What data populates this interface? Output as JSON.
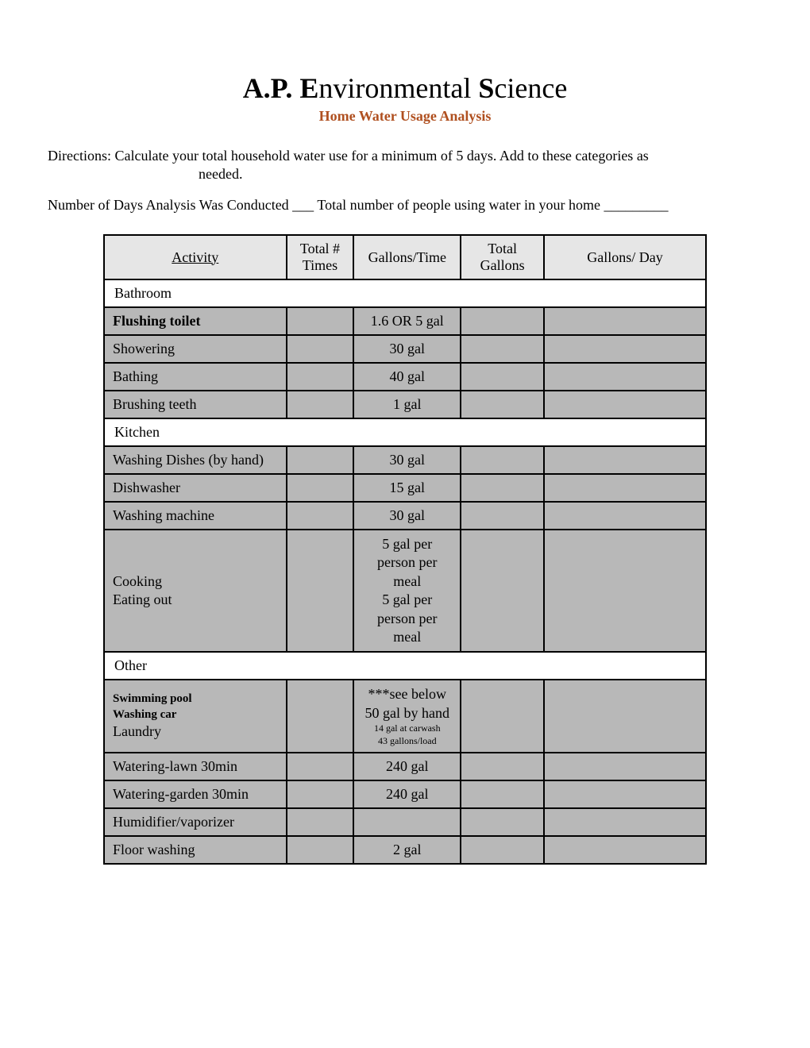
{
  "header": {
    "title_prefix_bold": "A.P. E",
    "title_mid": "nvironmental ",
    "title_s_bold": "S",
    "title_rest": "cience",
    "subtitle": "Home Water Usage Analysis"
  },
  "directions": {
    "line1": "Directions: Calculate your total household water use for a minimum of 5 days. Add to these categories as",
    "line2": "needed."
  },
  "analysis_line": "Number of Days Analysis Was Conducted ___  Total number of  people using water in your home _________",
  "columns": {
    "activity": "Activity",
    "times": "Total # Times",
    "gpt": "Gallons/Time",
    "total": "Total Gallons",
    "gpd": "Gallons/ Day"
  },
  "sections": [
    {
      "name": "Bathroom",
      "rows": [
        {
          "activity": "Flushing toilet",
          "activity_bold": true,
          "activity_small": true,
          "gpt": "1.6 OR 5 gal"
        },
        {
          "activity": "Showering",
          "gpt": "30 gal"
        },
        {
          "activity": "Bathing",
          "gpt": "40 gal"
        },
        {
          "activity": "Brushing teeth",
          "gpt": "1 gal"
        }
      ]
    },
    {
      "name": "Kitchen",
      "rows": [
        {
          "activity": "Washing Dishes (by hand)",
          "gpt": "30 gal"
        },
        {
          "activity": "Dishwasher",
          "gpt": "15 gal"
        },
        {
          "activity": "Washing machine",
          "gpt": "30 gal"
        },
        {
          "activity_multi": [
            "Cooking",
            "Eating out"
          ],
          "gpt_multi": [
            "5 gal per person per meal",
            "5 gal per person per meal"
          ]
        }
      ]
    },
    {
      "name": "Other",
      "rows": [
        {
          "activity_stack": [
            {
              "text": "Swimming pool",
              "bold": true,
              "small": true
            },
            {
              "text": "Washing car",
              "bold": true,
              "small": true
            },
            {
              "text": "Laundry",
              "bold": false,
              "small": false
            }
          ],
          "gpt_stack": [
            {
              "text": "***see below",
              "size": "normal"
            },
            {
              "text": "50 gal by hand",
              "size": "normal"
            },
            {
              "text": "14 gal at carwash",
              "size": "xs"
            },
            {
              "text": "43 gallons/load",
              "size": "xs"
            }
          ]
        },
        {
          "activity": "Watering-lawn 30min",
          "gpt": "240 gal"
        },
        {
          "activity": "Watering-garden 30min",
          "gpt": "240 gal"
        },
        {
          "activity": "Humidifier/vaporizer",
          "gpt": ""
        },
        {
          "activity": "Floor washing",
          "activity_small": true,
          "gpt": "2 gal"
        }
      ]
    }
  ],
  "colors": {
    "subtitle": "#b05020",
    "header_bg": "#e6e6e6",
    "row_bg": "#b8b8b8",
    "section_bg": "#ffffff",
    "border": "#000000"
  }
}
